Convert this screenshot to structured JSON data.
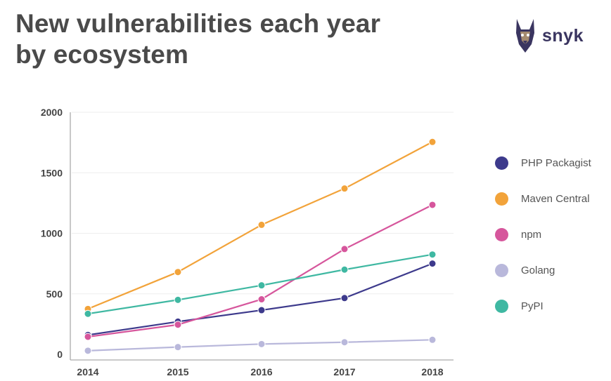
{
  "header": {
    "title_line1": "New vulnerabilities each year",
    "title_line2": "by ecosystem",
    "brand_name": "snyk"
  },
  "chart_data": {
    "type": "line",
    "title": "New vulnerabilities each year by ecosystem",
    "xlabel": "",
    "ylabel": "",
    "x": [
      2014,
      2015,
      2016,
      2017,
      2018
    ],
    "x_labels": [
      "2014",
      "2015",
      "2016",
      "2017",
      "2018"
    ],
    "ylim": [
      0,
      2000
    ],
    "yticks": [
      0,
      500,
      1000,
      1500,
      2000
    ],
    "ytick_labels": [
      "0",
      "500",
      "1000",
      "1500",
      "2000"
    ],
    "legend_position": "right",
    "series": [
      {
        "name": "PHP Packagist",
        "color": "#3d3a8c",
        "values": [
          160,
          270,
          365,
          465,
          750
        ]
      },
      {
        "name": "Maven Central",
        "color": "#f2a33a",
        "values": [
          375,
          680,
          1070,
          1370,
          1755
        ]
      },
      {
        "name": "npm",
        "color": "#d6569c",
        "values": [
          145,
          245,
          455,
          870,
          1235
        ]
      },
      {
        "name": "Golang",
        "color": "#b9b8db",
        "values": [
          30,
          60,
          85,
          100,
          120
        ]
      },
      {
        "name": "PyPI",
        "color": "#3fb8a2",
        "values": [
          335,
          450,
          570,
          700,
          825
        ]
      }
    ]
  }
}
